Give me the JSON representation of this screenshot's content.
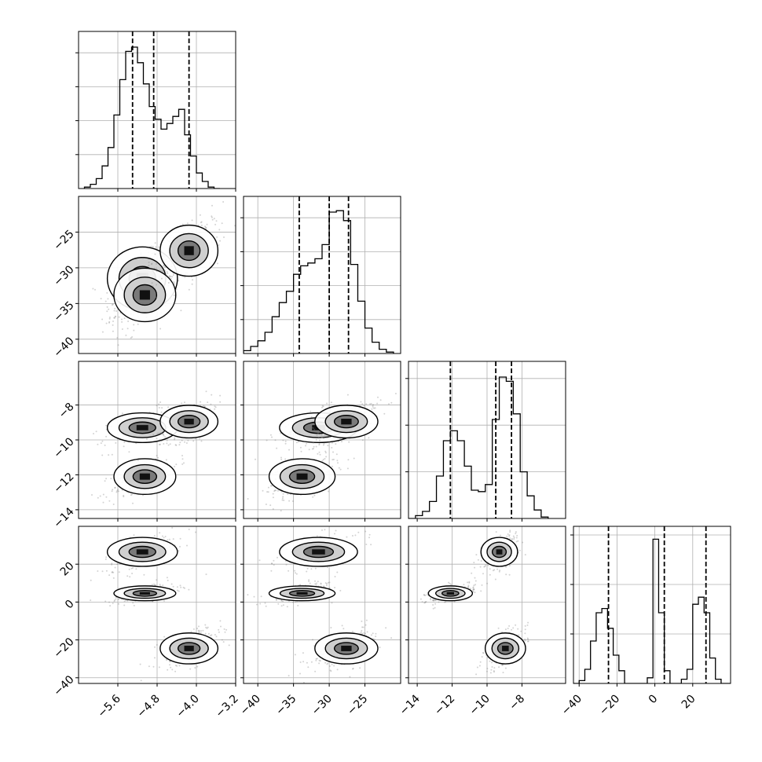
{
  "chart_data": {
    "type": "corner",
    "grid": true,
    "colors": {
      "hist": "#000000",
      "contour": "#000000",
      "points": "#808080",
      "grid": "#b0b0b0"
    },
    "parameters": [
      {
        "range": [
          -6.4,
          -3.2
        ],
        "ticks": [
          -5.6,
          -4.8,
          -4.0,
          -3.2
        ],
        "tick_labels": [
          "−5.6",
          "−4.8",
          "−4.0",
          "−3.2"
        ],
        "quantiles": [
          -5.3,
          -4.87,
          -4.15
        ],
        "hist": {
          "edges": [
            -6.28,
            -6.16,
            -6.04,
            -5.92,
            -5.8,
            -5.68,
            -5.56,
            -5.44,
            -5.32,
            -5.2,
            -5.08,
            -4.96,
            -4.84,
            -4.72,
            -4.6,
            -4.48,
            -4.36,
            -4.24,
            -4.12,
            -4.0,
            -3.88,
            -3.76,
            -3.64,
            -3.52
          ],
          "values": [
            0.01,
            0.03,
            0.07,
            0.16,
            0.29,
            0.52,
            0.77,
            0.97,
            1.0,
            0.89,
            0.74,
            0.58,
            0.49,
            0.42,
            0.46,
            0.51,
            0.56,
            0.38,
            0.23,
            0.11,
            0.05,
            0.01,
            0.0
          ]
        },
        "hist_gridlines": [
          0.24,
          0.48,
          0.72,
          0.96
        ]
      },
      {
        "range": [
          -42,
          -20
        ],
        "ticks": [
          -40,
          -35,
          -30,
          -25
        ],
        "tick_labels": [
          "−40",
          "−35",
          "−30",
          "−25"
        ],
        "quantiles": [
          -34.2,
          -30.0,
          -27.3
        ],
        "hist": {
          "edges": [
            -42,
            -41,
            -40,
            -39,
            -38,
            -37,
            -36,
            -35,
            -34,
            -33,
            -32,
            -31,
            -30,
            -29,
            -28,
            -27,
            -26,
            -25,
            -24,
            -23,
            -22,
            -21
          ],
          "values": [
            0.02,
            0.05,
            0.09,
            0.15,
            0.26,
            0.36,
            0.44,
            0.56,
            0.62,
            0.64,
            0.67,
            0.77,
            1.0,
            1.01,
            0.94,
            0.63,
            0.37,
            0.18,
            0.08,
            0.03,
            0.01
          ]
        },
        "hist_gridlines": [
          0.24,
          0.48,
          0.72,
          0.96
        ]
      },
      {
        "range": [
          -14.5,
          -5.5
        ],
        "ticks": [
          -14,
          -12,
          -10,
          -8
        ],
        "tick_labels": [
          "−14",
          "−12",
          "−10",
          "−8"
        ],
        "quantiles": [
          -12.1,
          -9.5,
          -8.6
        ],
        "hist": {
          "edges": [
            -14.5,
            -14.1,
            -13.7,
            -13.3,
            -12.9,
            -12.5,
            -12.1,
            -11.7,
            -11.3,
            -10.9,
            -10.5,
            -10.1,
            -9.7,
            -9.3,
            -8.9,
            -8.5,
            -8.1,
            -7.7,
            -7.3,
            -6.9,
            -6.5
          ],
          "values": [
            0.0,
            0.02,
            0.05,
            0.12,
            0.3,
            0.55,
            0.62,
            0.55,
            0.37,
            0.2,
            0.19,
            0.24,
            0.7,
            1.0,
            0.97,
            0.74,
            0.33,
            0.16,
            0.06,
            0.01
          ]
        },
        "hist_gridlines": [
          0.33,
          0.66,
          0.99
        ]
      },
      {
        "range": [
          -43,
          40
        ],
        "ticks": [
          -40,
          -20,
          0,
          20
        ],
        "tick_labels": [
          "−40",
          "−20",
          "0",
          "20"
        ],
        "quantiles": [
          -24.5,
          5.0,
          27.0
        ],
        "hist": {
          "edges": [
            -43,
            -40,
            -37,
            -34,
            -31,
            -28,
            -25,
            -22,
            -19,
            -16,
            -13,
            -10,
            -7,
            -4,
            -1,
            2,
            5,
            8,
            11,
            14,
            17,
            20,
            23,
            26,
            29,
            32,
            35,
            38,
            40
          ],
          "values": [
            0.0,
            0.02,
            0.1,
            0.3,
            0.5,
            0.53,
            0.39,
            0.2,
            0.09,
            0.0,
            0.0,
            0.0,
            0.0,
            0.04,
            1.02,
            0.5,
            0.09,
            0.0,
            0.0,
            0.03,
            0.1,
            0.56,
            0.61,
            0.5,
            0.18,
            0.03,
            0.0,
            0.0
          ]
        },
        "hist_gridlines": [
          0.35,
          0.7,
          1.05
        ]
      }
    ],
    "modes": [
      {
        "p": [
          -5.1,
          -31.5,
          -9.3,
          26.5
        ],
        "s": [
          0.34,
          2.6,
          0.5,
          4.5
        ],
        "w": 0.33
      },
      {
        "p": [
          -5.05,
          -33.8,
          -12.1,
          4.6
        ],
        "s": [
          0.3,
          2.2,
          0.6,
          2.3
        ],
        "w": 0.34
      },
      {
        "p": [
          -4.15,
          -27.6,
          -8.95,
          -24.5
        ],
        "s": [
          0.28,
          2.1,
          0.55,
          4.8
        ],
        "w": 0.33
      }
    ]
  }
}
